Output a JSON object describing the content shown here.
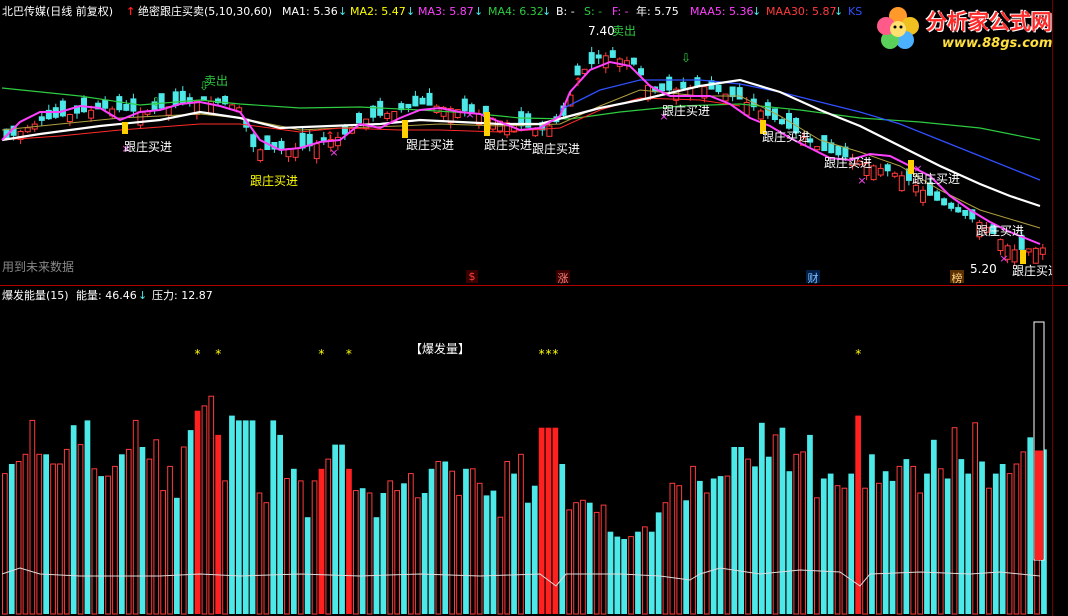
{
  "upper_header": {
    "stock_name": "北巴传媒(日线 前复权)",
    "formula_name": "绝密跟庄买卖(5,10,30,60)",
    "ma1": "MA1: 5.36",
    "ma2": "MA2: 5.47",
    "ma3": "MA3: 5.87",
    "ma4": "MA4: 6.32",
    "b": "B: -",
    "s": "S: -",
    "f": "F: -",
    "year": "年: 5.75",
    "maa5": "MAA5: 5.36",
    "maa30": "MAA30: 5.87",
    "extra": "KS"
  },
  "lower_header": {
    "formula_name": "爆发能量(15)",
    "energy": "能量: 46.46",
    "pressure": "压力: 12.87"
  },
  "annotations": {
    "future_data": "用到未来数据",
    "price_high": "7.40",
    "price_low": "5.20",
    "sell": "卖出",
    "buy_follow": "跟庄买进",
    "burst_volume": "【爆发量】",
    "star": "*"
  },
  "event_markers": [
    "$",
    "涨",
    "财",
    "榜"
  ],
  "logo": {
    "text": "分析家公式网",
    "url": "www.88gs.com"
  },
  "colors": {
    "background": "#000000",
    "up_candle": "#ff3b3b",
    "down_candle": "#4de8e8",
    "maa5_line": "#ff40ff",
    "maa10_line": "#ffffff",
    "ma_green": "#2ecc40",
    "ma_blue": "#3050ff",
    "buy_label": "#ffff00",
    "burst_bar": "#ff2020",
    "panel_border": "#b00000"
  },
  "chart_data": {
    "type": "bar",
    "title": "爆发能量(15)",
    "series": [
      {
        "name": "能量",
        "bar_type": [
          "r",
          "b",
          "r",
          "r",
          "r",
          "r",
          "b",
          "r",
          "r",
          "r",
          "b",
          "r",
          "b",
          "r",
          "b",
          "r",
          "r",
          "b",
          "r",
          "r",
          "b",
          "r",
          "r",
          "r",
          "r",
          "b",
          "r",
          "b",
          "R",
          "r",
          "r",
          "R",
          "r",
          "b",
          "b",
          "b",
          "b",
          "r",
          "r",
          "b",
          "b",
          "r",
          "b",
          "r",
          "b",
          "r",
          "R",
          "r",
          "b",
          "b",
          "R",
          "r",
          "b",
          "r",
          "b",
          "b",
          "r",
          "r",
          "b",
          "r",
          "r",
          "b",
          "b",
          "r",
          "b",
          "r",
          "r",
          "b",
          "r",
          "r",
          "b",
          "b",
          "r",
          "r",
          "b",
          "r",
          "b",
          "b",
          "R",
          "R",
          "R",
          "b",
          "r",
          "r",
          "r",
          "b",
          "r",
          "r",
          "b",
          "b",
          "b",
          "r",
          "b",
          "r",
          "b",
          "b",
          "r",
          "r",
          "r",
          "b",
          "r",
          "b",
          "r",
          "b",
          "b",
          "r",
          "b",
          "b",
          "r",
          "b",
          "b",
          "b",
          "r",
          "b",
          "b",
          "r",
          "r",
          "b",
          "r",
          "b",
          "b",
          "r",
          "r",
          "b",
          "R",
          "r",
          "b",
          "r",
          "b",
          "b",
          "r",
          "b",
          "r",
          "r",
          "b",
          "b",
          "r",
          "b",
          "r",
          "b",
          "b",
          "r",
          "b",
          "r",
          "b",
          "b",
          "r",
          "r",
          "r",
          "b",
          "r",
          "b"
        ],
        "values": [
          58,
          62,
          63,
          66,
          80,
          66,
          66,
          62,
          62,
          68,
          78,
          70,
          80,
          60,
          57,
          57,
          61,
          66,
          68,
          80,
          69,
          64,
          72,
          51,
          61,
          48,
          69,
          76,
          84,
          86,
          90,
          74,
          55,
          82,
          80,
          80,
          80,
          50,
          46,
          80,
          74,
          56,
          60,
          55,
          40,
          55,
          60,
          64,
          70,
          70,
          60,
          51,
          52,
          50,
          40,
          50,
          55,
          51,
          54,
          58,
          48,
          50,
          60,
          63,
          63,
          59,
          49,
          60,
          60,
          54,
          49,
          51,
          40,
          63,
          58,
          66,
          46,
          53,
          77,
          77,
          77,
          62,
          43,
          46,
          47,
          46,
          42,
          45,
          34,
          32,
          31,
          32,
          34,
          36,
          34,
          42,
          46,
          54,
          53,
          47,
          61,
          55,
          50,
          56,
          57,
          57,
          69,
          69,
          64,
          61,
          79,
          65,
          74,
          77,
          59,
          66,
          67,
          74,
          48,
          56,
          58,
          53,
          52,
          58,
          82,
          52,
          66,
          54,
          59,
          55,
          61,
          64,
          61,
          50,
          58,
          72,
          60,
          56,
          77,
          64,
          58,
          79,
          63,
          52,
          58,
          62,
          58,
          62,
          67,
          73,
          48,
          68
        ]
      }
    ],
    "gauge_energy_level_pct": 46,
    "burst_star_count": 12
  }
}
